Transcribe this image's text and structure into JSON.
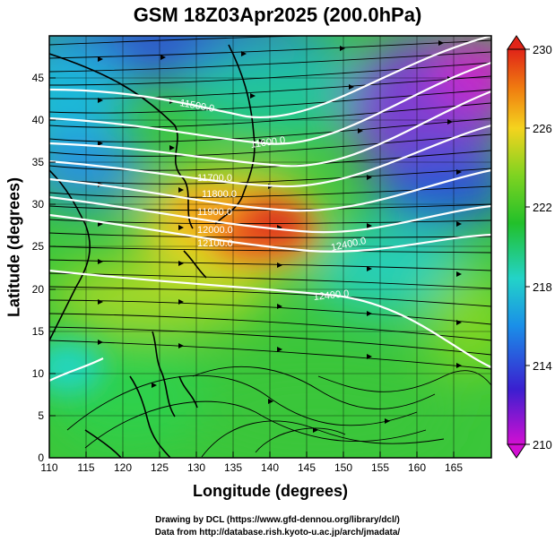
{
  "title": "GSM 18Z03Apr2025 (200.0hPa)",
  "x_axis": {
    "label": "Longitude (degrees)",
    "range": [
      110,
      170
    ],
    "ticks": [
      "110",
      "115",
      "120",
      "125",
      "130",
      "135",
      "140",
      "145",
      "150",
      "155",
      "160",
      "165"
    ]
  },
  "y_axis": {
    "label": "Latitude  (degrees)",
    "range": [
      0,
      50
    ],
    "ticks": [
      "0",
      "5",
      "10",
      "15",
      "20",
      "25",
      "30",
      "35",
      "40",
      "45"
    ]
  },
  "colorbar": {
    "range": [
      210,
      230
    ],
    "labels": [
      "230",
      "226",
      "222",
      "218",
      "214",
      "210"
    ],
    "colors": [
      "#d20fd2",
      "#3a1fd0",
      "#1a8fe8",
      "#23d3c8",
      "#22c02a",
      "#7ed321",
      "#f4d31e",
      "#f07d10",
      "#e02418"
    ]
  },
  "contours": {
    "labels": [
      "11500.0",
      "11600.0",
      "11700.0",
      "11800.0",
      "11900.0",
      "12000.0",
      "12100.0",
      "12400.0",
      "12400.0"
    ]
  },
  "credits": [
    "Drawing by DCL (https://www.gfd-dennou.org/library/dcl/)",
    "Data from http://database.rish.kyoto-u.ac.jp/arch/jmadata/"
  ]
}
